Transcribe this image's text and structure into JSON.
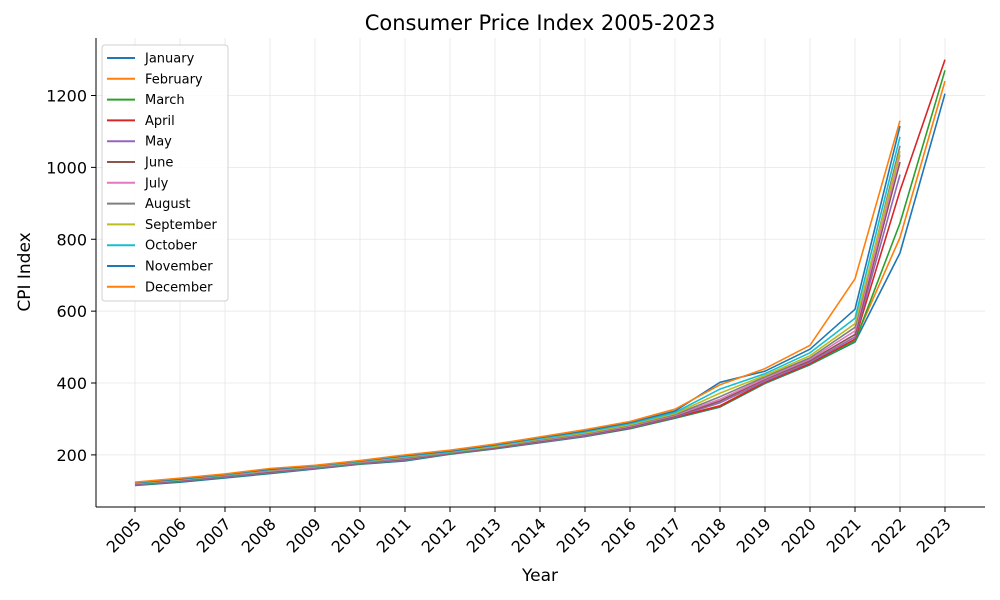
{
  "chart_data": {
    "type": "line",
    "title": "Consumer Price Index 2005-2023",
    "xlabel": "Year",
    "ylabel": "CPI Index",
    "x": [
      "2005",
      "2006",
      "2007",
      "2008",
      "2009",
      "2010",
      "2011",
      "2012",
      "2013",
      "2014",
      "2015",
      "2016",
      "2017",
      "2018",
      "2019",
      "2020",
      "2021",
      "2022",
      "2023"
    ],
    "ylim": [
      55,
      1360
    ],
    "yticks": [
      200,
      400,
      600,
      800,
      1000,
      1200
    ],
    "grid": true,
    "legend_position": "top-left",
    "series": [
      {
        "name": "January",
        "color": "#1f77b4",
        "values": [
          115,
          124,
          136,
          148,
          161,
          174,
          183,
          202,
          217,
          234,
          251,
          273,
          302,
          333,
          399,
          451,
          514,
          762,
          1205
        ]
      },
      {
        "name": "February",
        "color": "#ff7f0e",
        "values": [
          120,
          129,
          141,
          154,
          165,
          178,
          189,
          205,
          220,
          237,
          254,
          276,
          305,
          337,
          403,
          455,
          520,
          805,
          1240
        ]
      },
      {
        "name": "March",
        "color": "#2ca02c",
        "values": [
          116,
          126,
          138,
          150,
          162,
          175,
          185,
          203,
          218,
          235,
          252,
          274,
          303,
          334,
          400,
          452,
          516,
          845,
          1270
        ]
      },
      {
        "name": "April",
        "color": "#d62728",
        "values": [
          118,
          128,
          140,
          152,
          164,
          177,
          187,
          204,
          219,
          236,
          253,
          275,
          305,
          336,
          402,
          454,
          522,
          935,
          1300
        ]
      },
      {
        "name": "May",
        "color": "#9467bd",
        "values": [
          117,
          127,
          139,
          151,
          163,
          176,
          186,
          204,
          219,
          236,
          253,
          276,
          306,
          345,
          405,
          458,
          528,
          980,
          null
        ]
      },
      {
        "name": "June",
        "color": "#8c564b",
        "values": [
          119,
          129,
          141,
          153,
          165,
          178,
          188,
          205,
          220,
          238,
          255,
          278,
          308,
          350,
          410,
          462,
          535,
          1015,
          null
        ]
      },
      {
        "name": "July",
        "color": "#e377c2",
        "values": [
          120,
          130,
          142,
          155,
          166,
          179,
          190,
          206,
          222,
          240,
          257,
          280,
          310,
          355,
          413,
          466,
          545,
          1035,
          null
        ]
      },
      {
        "name": "August",
        "color": "#7f7f7f",
        "values": [
          121,
          131,
          143,
          157,
          167,
          180,
          192,
          207,
          223,
          242,
          259,
          282,
          312,
          362,
          417,
          470,
          555,
          1060,
          null
        ]
      },
      {
        "name": "September",
        "color": "#bcbd22",
        "values": [
          121,
          131,
          144,
          158,
          168,
          181,
          194,
          208,
          224,
          244,
          261,
          284,
          315,
          372,
          421,
          476,
          565,
          1045,
          null
        ]
      },
      {
        "name": "October",
        "color": "#17becf",
        "values": [
          122,
          132,
          145,
          159,
          169,
          182,
          196,
          209,
          226,
          246,
          264,
          287,
          318,
          383,
          426,
          484,
          580,
          1085,
          null
        ]
      },
      {
        "name": "November",
        "color": "#1f77b4",
        "values": [
          123,
          133,
          146,
          160,
          170,
          183,
          198,
          211,
          228,
          248,
          267,
          290,
          322,
          402,
          433,
          494,
          605,
          1115,
          null
        ]
      },
      {
        "name": "December",
        "color": "#ff7f0e",
        "values": [
          124,
          135,
          147,
          162,
          171,
          184,
          200,
          213,
          230,
          250,
          270,
          293,
          327,
          395,
          440,
          505,
          690,
          1130,
          null
        ]
      }
    ]
  }
}
